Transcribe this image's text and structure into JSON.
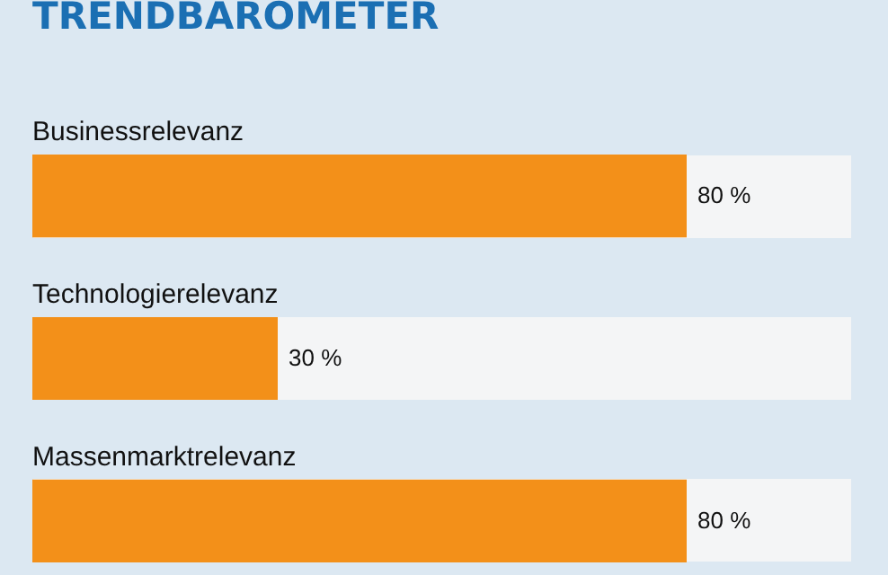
{
  "chart_data": {
    "type": "bar",
    "orientation": "horizontal",
    "title": "TRENDBAROMETER",
    "categories": [
      "Businessrelevanz",
      "Technologierelevanz",
      "Massenmarktrelevanz"
    ],
    "values": [
      80,
      30,
      80
    ],
    "value_labels": [
      "80 %",
      "30 %",
      "80 %"
    ],
    "color": "#f39019",
    "xlim": [
      0,
      100
    ]
  }
}
